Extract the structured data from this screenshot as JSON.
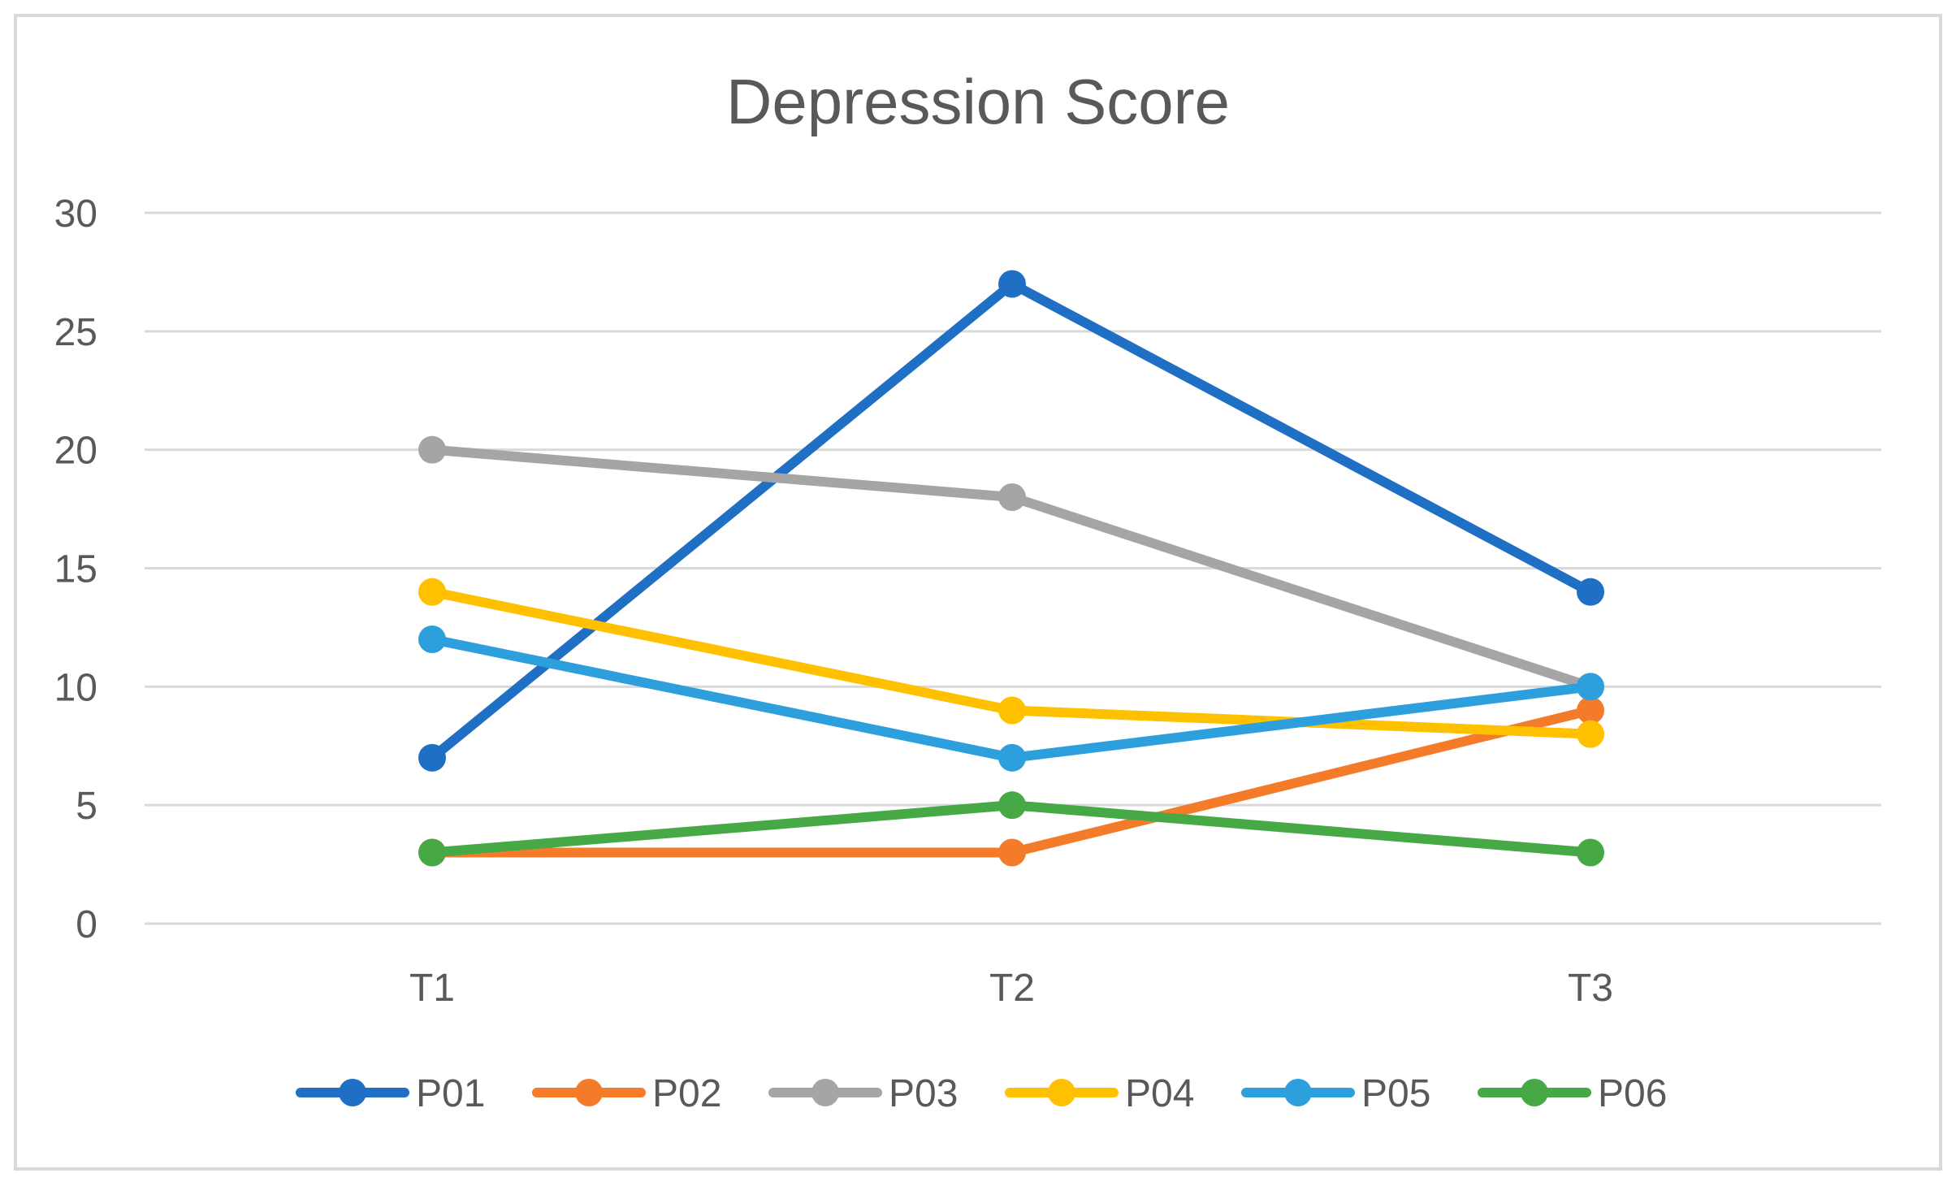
{
  "chart_data": {
    "type": "line",
    "title": "Depression Score",
    "xlabel": "",
    "ylabel": "",
    "categories": [
      "T1",
      "T2",
      "T3"
    ],
    "ylim": [
      0,
      30
    ],
    "yticks": [
      0,
      5,
      10,
      15,
      20,
      25,
      30
    ],
    "ytick_labels": [
      "0",
      "5",
      "10",
      "15",
      "20",
      "25",
      "30"
    ],
    "grid": true,
    "legend_position": "bottom",
    "series": [
      {
        "name": "P01",
        "color": "#1F6FC5",
        "values": [
          7,
          27,
          14
        ]
      },
      {
        "name": "P02",
        "color": "#F47B2A",
        "values": [
          3,
          3,
          9
        ]
      },
      {
        "name": "P03",
        "color": "#A5A5A5",
        "values": [
          20,
          18,
          10
        ]
      },
      {
        "name": "P04",
        "color": "#FFC000",
        "values": [
          14,
          9,
          8
        ]
      },
      {
        "name": "P05",
        "color": "#2E9FDD",
        "values": [
          12,
          7,
          10
        ]
      },
      {
        "name": "P06",
        "color": "#47A846",
        "values": [
          3,
          5,
          3
        ]
      }
    ]
  }
}
